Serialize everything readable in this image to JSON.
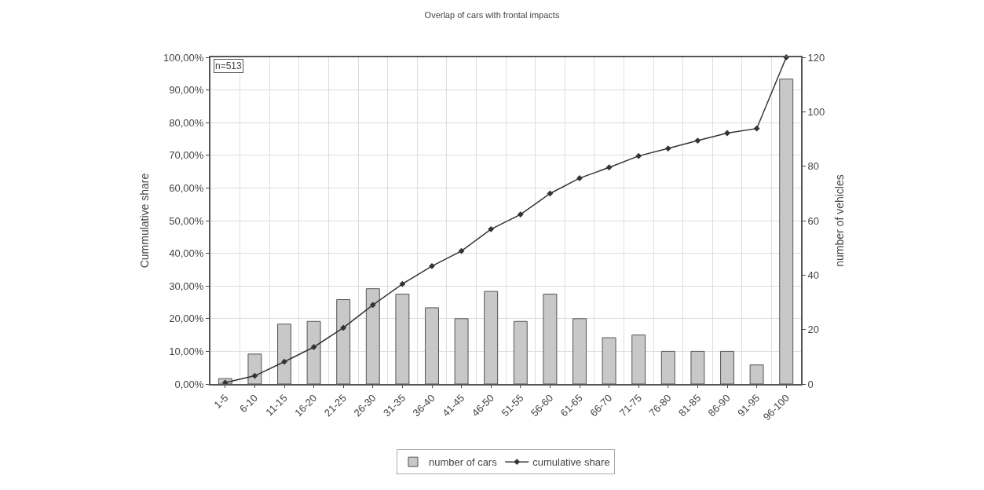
{
  "chart_data": {
    "type": "bar",
    "title": "Overlap of cars with frontal impacts",
    "ylabel": "Cummulative share",
    "y2label": "number of vehicles",
    "categories": [
      "1-5",
      "6-10",
      "11-15",
      "16-20",
      "21-25",
      "26-30",
      "31-35",
      "36-40",
      "41-45",
      "46-50",
      "51-55",
      "56-60",
      "61-65",
      "66-70",
      "71-75",
      "76-80",
      "81-85",
      "86-90",
      "91-95",
      "96-100"
    ],
    "series": [
      {
        "name": "number of cars",
        "axis": "y2",
        "color": "#c8c8c8",
        "values": [
          2,
          11,
          22,
          23,
          31,
          35,
          33,
          28,
          24,
          34,
          23,
          33,
          24,
          17,
          18,
          12,
          12,
          12,
          7,
          112
        ]
      },
      {
        "name": "cumulative share",
        "type": "line",
        "color": "#333333",
        "marker": "diamond",
        "values": [
          0.4,
          2.5,
          6.8,
          11.3,
          17.2,
          24.2,
          30.6,
          36.1,
          40.7,
          47.4,
          51.9,
          58.3,
          63.0,
          66.3,
          69.8,
          72.1,
          74.5,
          76.8,
          78.2,
          100
        ]
      }
    ],
    "ylim": [
      0,
      100
    ],
    "yticks": [
      {
        "value": 0,
        "label": "0,00%"
      },
      {
        "value": 10,
        "label": "10,00%"
      },
      {
        "value": 20,
        "label": "20,00%"
      },
      {
        "value": 30,
        "label": "30,00%"
      },
      {
        "value": 40,
        "label": "40,00%"
      },
      {
        "value": 50,
        "label": "50,00%"
      },
      {
        "value": 60,
        "label": "60,00%"
      },
      {
        "value": 70,
        "label": "70,00%"
      },
      {
        "value": 80,
        "label": "80,00%"
      },
      {
        "value": 90,
        "label": "90,00%"
      },
      {
        "value": 100,
        "label": "100,00%"
      }
    ],
    "y2lim": [
      0,
      120
    ],
    "y2ticks": [
      0,
      20,
      40,
      60,
      80,
      100,
      120
    ],
    "annotations": [
      "n=513"
    ],
    "grid": true,
    "legend": "bottom"
  }
}
